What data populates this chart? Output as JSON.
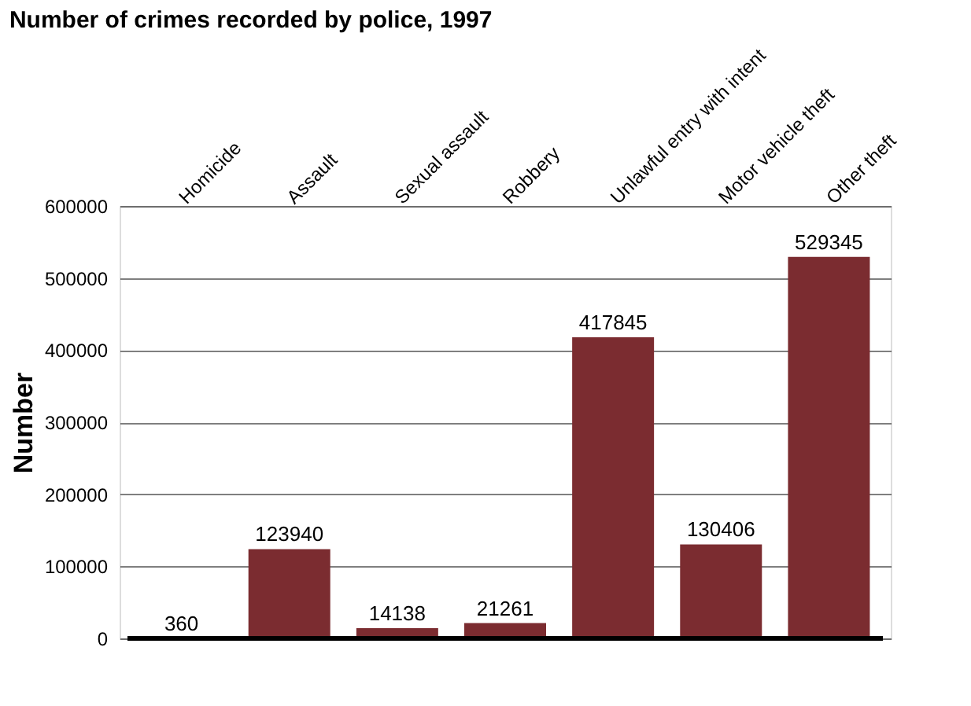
{
  "chart_data": {
    "type": "bar",
    "title": "Number of crimes recorded by police, 1997",
    "ylabel": "Number",
    "categories": [
      "Homicide",
      "Assault",
      "Sexual assault",
      "Robbery",
      "Unlawful entry with intent",
      "Motor vehicle theft",
      "Other theft"
    ],
    "values": [
      360,
      123940,
      14138,
      21261,
      417845,
      130406,
      529345
    ],
    "color": "#7b2c30",
    "ylim": [
      0,
      600000
    ],
    "yticks": [
      0,
      100000,
      200000,
      300000,
      400000,
      500000,
      600000
    ],
    "grid": "y",
    "data_labels": true
  }
}
